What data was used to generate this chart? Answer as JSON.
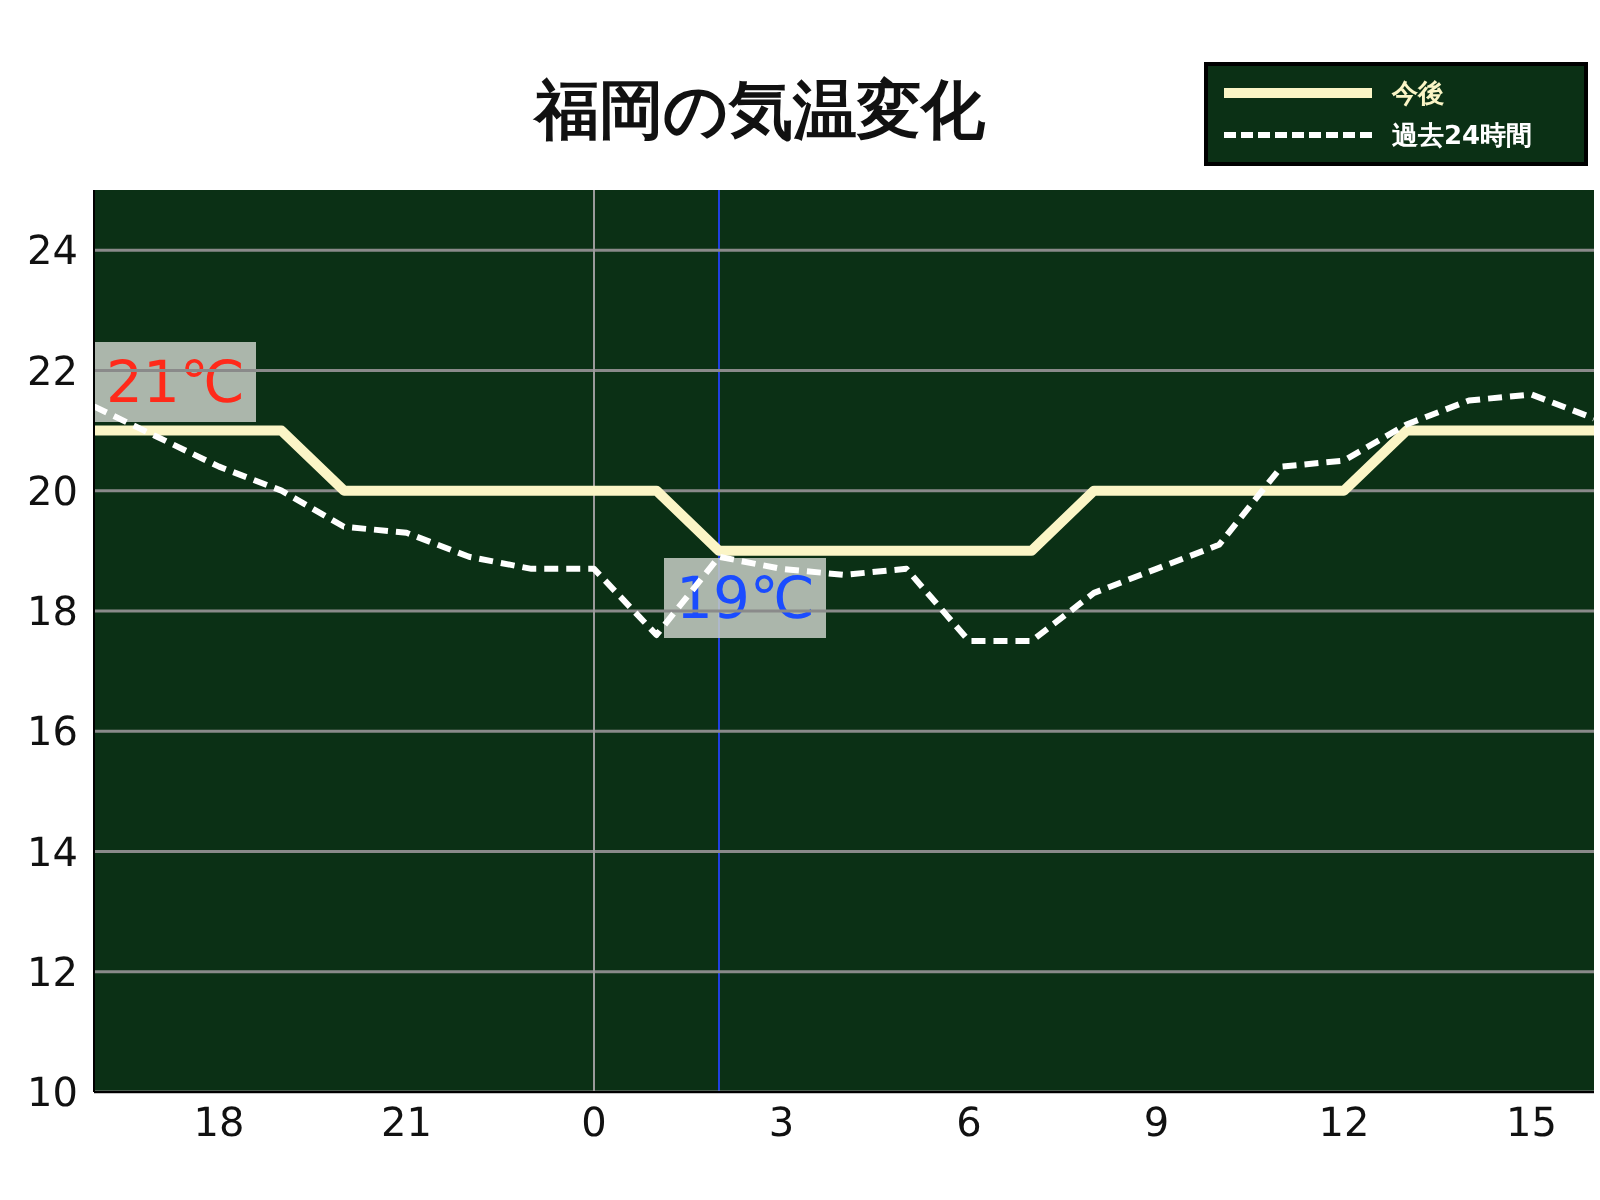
{
  "chart_data": {
    "type": "line",
    "title": "福岡の気温変化",
    "categories": [
      null,
      null,
      "18",
      null,
      null,
      "21",
      null,
      null,
      "0",
      null,
      null,
      "3",
      null,
      null,
      "6",
      null,
      null,
      "9",
      null,
      null,
      "12",
      null,
      null,
      "15",
      null
    ],
    "series": [
      {
        "name": "今後",
        "color": "#fbf5c6",
        "line_style": "solid",
        "values": [
          21,
          21,
          21,
          21,
          20,
          20,
          20,
          20,
          20,
          20,
          19,
          19,
          19,
          19,
          19,
          19,
          20,
          20,
          20,
          20,
          20,
          21,
          21,
          21,
          21
        ]
      },
      {
        "name": "過去24時間",
        "color": "#ffffff",
        "line_style": "dashed",
        "values": [
          21.4,
          20.9,
          20.4,
          20.0,
          19.4,
          19.3,
          18.9,
          18.7,
          18.7,
          17.6,
          18.9,
          18.7,
          18.6,
          18.7,
          17.5,
          17.5,
          18.3,
          18.7,
          19.1,
          20.4,
          20.5,
          21.1,
          21.5,
          21.6,
          21.2
        ]
      }
    ],
    "ylim": [
      10,
      25
    ],
    "yticks": [
      10,
      12,
      14,
      16,
      18,
      20,
      22,
      24
    ],
    "grid": "y",
    "legend": "top right",
    "marker": "none",
    "ref_lines": [
      {
        "axis": "x",
        "value": "0",
        "color": "#9a9a9a"
      }
    ],
    "annotations": [
      "21℃",
      "19℃"
    ]
  }
}
